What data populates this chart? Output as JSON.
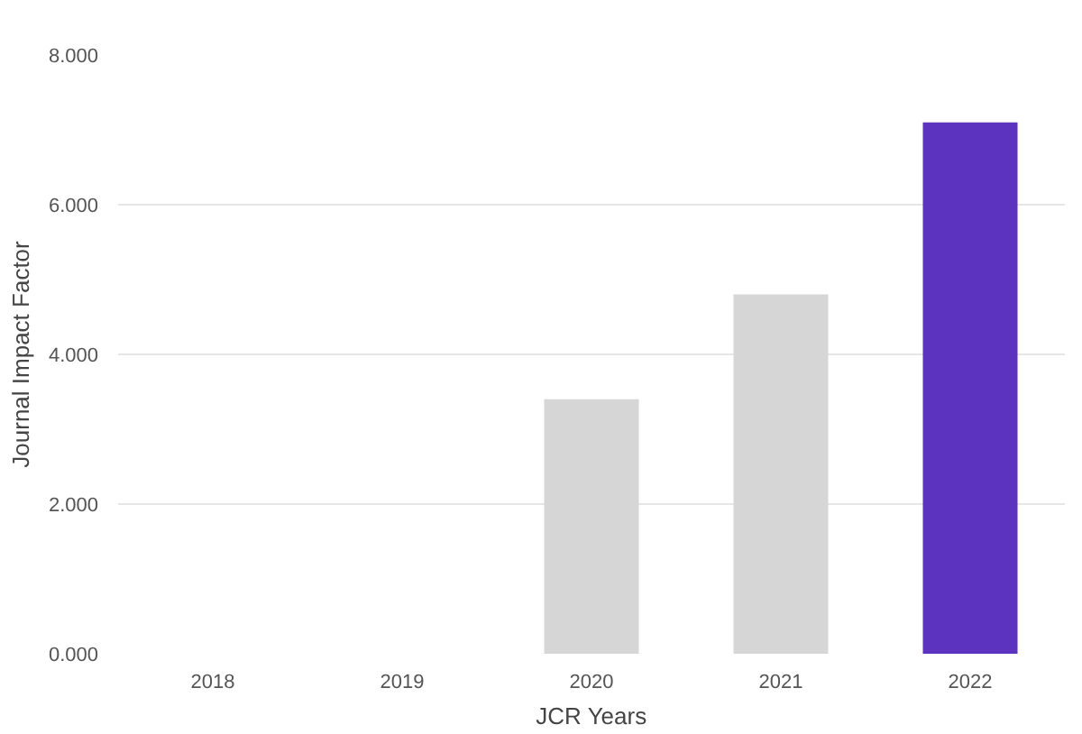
{
  "chart_data": {
    "type": "bar",
    "xlabel": "JCR Years",
    "ylabel": "Journal Impact Factor",
    "categories": [
      "2018",
      "2019",
      "2020",
      "2021",
      "2022"
    ],
    "values": [
      null,
      null,
      3.4,
      4.8,
      7.1
    ],
    "colors": [
      "#d6d6d6",
      "#d6d6d6",
      "#d6d6d6",
      "#d6d6d6",
      "#5c33be"
    ],
    "ylim": [
      0,
      8
    ],
    "yticks": [
      {
        "value": 0,
        "label": "0.000"
      },
      {
        "value": 2,
        "label": "2.000"
      },
      {
        "value": 4,
        "label": "4.000"
      },
      {
        "value": 6,
        "label": "6.000"
      },
      {
        "value": 8,
        "label": "8.000"
      }
    ],
    "grid": "y"
  }
}
